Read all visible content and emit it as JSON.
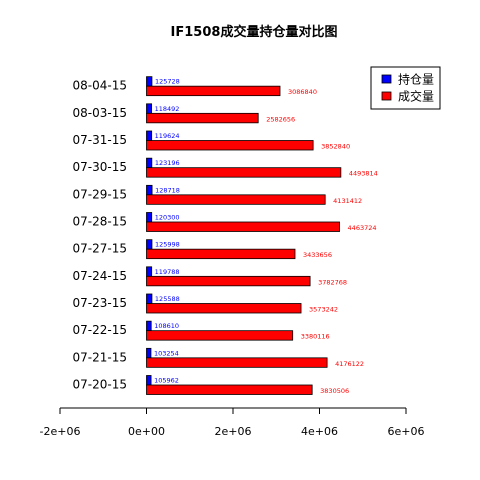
{
  "chart_data": {
    "type": "bar",
    "orientation": "horizontal",
    "title": "IF1508成交量持仓量对比图",
    "categories": [
      "07-20-15",
      "07-21-15",
      "07-22-15",
      "07-23-15",
      "07-24-15",
      "07-27-15",
      "07-28-15",
      "07-29-15",
      "07-30-15",
      "07-31-15",
      "08-03-15",
      "08-04-15"
    ],
    "series": [
      {
        "name": "持仓量",
        "color": "#0000ff",
        "values": [
          105962,
          103254,
          108610,
          125588,
          119788,
          125998,
          120300,
          128718,
          123196,
          119624,
          118492,
          125728
        ],
        "labels": [
          "105962",
          "103254",
          "108610",
          "125588",
          "119788",
          "125998",
          "120300",
          "128718",
          "123196",
          "119624",
          "118492",
          "125728"
        ]
      },
      {
        "name": "成交量",
        "color": "#ff0000",
        "values": [
          3830506,
          4176122,
          3380116,
          3573242,
          3782768,
          3433656,
          4463724,
          4131412,
          4493814,
          3852840,
          2582656,
          3086840
        ],
        "labels": [
          "3830506",
          "4176122",
          "3380116",
          "3573242",
          "3782768",
          "3433656",
          "4463724",
          "4131412",
          "4493814",
          "3852840",
          "2582656",
          "3086840"
        ]
      }
    ],
    "xlim": [
      -2000000,
      6000000
    ],
    "xticks": [
      -2000000,
      0,
      2000000,
      4000000,
      6000000
    ],
    "xtick_labels": [
      "-2e+06",
      "0e+00",
      "2e+06",
      "4e+06",
      "6e+06"
    ],
    "xlabel": "",
    "ylabel": "",
    "grid": false,
    "legend_position": "top-right"
  }
}
